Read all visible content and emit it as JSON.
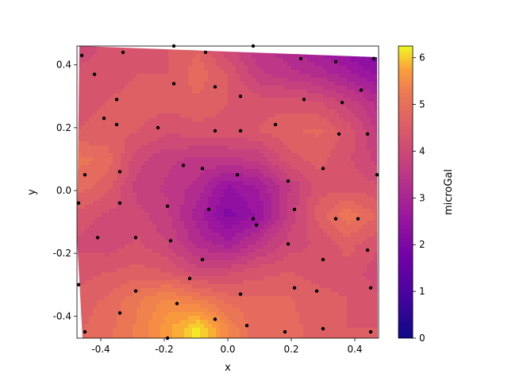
{
  "chart_data": {
    "type": "contour",
    "title": "",
    "xlabel": "x",
    "ylabel": "y",
    "xlim": [
      -0.475,
      0.475
    ],
    "ylim": [
      -0.47,
      0.46
    ],
    "xticks": [
      "-0.4",
      "-0.2",
      "0.0",
      "0.2",
      "0.4"
    ],
    "xtick_values": [
      -0.4,
      -0.2,
      0.0,
      0.2,
      0.4
    ],
    "yticks": [
      "-0.4",
      "-0.2",
      "0.0",
      "0.2",
      "0.4"
    ],
    "ytick_values": [
      -0.4,
      -0.2,
      0.0,
      0.2,
      0.4
    ],
    "colormap": "plasma",
    "colorbar": {
      "label": "microGal",
      "range": [
        0,
        6.25
      ],
      "ticks": [
        "0",
        "1",
        "2",
        "3",
        "4",
        "5",
        "6"
      ],
      "tick_values": [
        0,
        1,
        2,
        3,
        4,
        5,
        6
      ]
    },
    "grid": false,
    "legend": "none",
    "marker_color": "#000000",
    "stations": [
      [
        -0.46,
        0.43
      ],
      [
        -0.42,
        0.37
      ],
      [
        -0.33,
        0.44
      ],
      [
        -0.17,
        0.46
      ],
      [
        -0.07,
        0.44
      ],
      [
        0.08,
        0.46
      ],
      [
        0.23,
        0.42
      ],
      [
        0.34,
        0.41
      ],
      [
        0.46,
        0.42
      ],
      [
        -0.17,
        0.34
      ],
      [
        -0.04,
        0.33
      ],
      [
        0.04,
        0.3
      ],
      [
        0.24,
        0.29
      ],
      [
        0.36,
        0.28
      ],
      [
        0.42,
        0.32
      ],
      [
        -0.39,
        0.23
      ],
      [
        -0.35,
        0.29
      ],
      [
        -0.35,
        0.21
      ],
      [
        -0.22,
        0.2
      ],
      [
        -0.04,
        0.19
      ],
      [
        0.04,
        0.19
      ],
      [
        0.15,
        0.21
      ],
      [
        0.35,
        0.18
      ],
      [
        0.44,
        0.18
      ],
      [
        -0.45,
        0.05
      ],
      [
        -0.34,
        0.06
      ],
      [
        -0.14,
        0.08
      ],
      [
        -0.08,
        0.07
      ],
      [
        0.03,
        0.05
      ],
      [
        0.19,
        0.03
      ],
      [
        0.3,
        0.07
      ],
      [
        0.47,
        0.05
      ],
      [
        -0.47,
        -0.04
      ],
      [
        -0.34,
        -0.04
      ],
      [
        -0.19,
        -0.05
      ],
      [
        -0.06,
        -0.06
      ],
      [
        0.08,
        -0.09
      ],
      [
        0.09,
        -0.11
      ],
      [
        0.21,
        -0.06
      ],
      [
        0.34,
        -0.09
      ],
      [
        0.41,
        -0.09
      ],
      [
        -0.41,
        -0.15
      ],
      [
        -0.29,
        -0.15
      ],
      [
        -0.18,
        -0.16
      ],
      [
        -0.08,
        -0.22
      ],
      [
        0.19,
        -0.17
      ],
      [
        0.3,
        -0.22
      ],
      [
        0.44,
        -0.19
      ],
      [
        -0.47,
        -0.3
      ],
      [
        -0.29,
        -0.32
      ],
      [
        -0.12,
        -0.28
      ],
      [
        0.04,
        -0.33
      ],
      [
        0.21,
        -0.31
      ],
      [
        0.28,
        -0.32
      ],
      [
        0.45,
        -0.31
      ],
      [
        -0.45,
        -0.45
      ],
      [
        -0.34,
        -0.39
      ],
      [
        -0.16,
        -0.36
      ],
      [
        -0.19,
        -0.47
      ],
      [
        -0.04,
        -0.41
      ],
      [
        0.06,
        -0.43
      ],
      [
        0.18,
        -0.45
      ],
      [
        0.3,
        -0.44
      ],
      [
        0.45,
        -0.45
      ]
    ],
    "grid_y": [
      0.46,
      0.37,
      0.28,
      0.19,
      0.1,
      0.01,
      -0.08,
      -0.17,
      -0.26,
      -0.35,
      -0.44
    ],
    "grid_x": [
      -0.475,
      -0.38,
      -0.285,
      -0.19,
      -0.095,
      0.0,
      0.095,
      0.19,
      0.285,
      0.38,
      0.475
    ],
    "values": [
      [
        3.6,
        3.8,
        3.9,
        4.0,
        4.2,
        3.5,
        3.1,
        2.8,
        2.4,
        2.0,
        1.6
      ],
      [
        3.8,
        3.9,
        4.0,
        4.0,
        4.4,
        4.0,
        3.3,
        3.1,
        2.9,
        2.6,
        2.2
      ],
      [
        3.9,
        4.0,
        4.1,
        4.1,
        4.2,
        4.0,
        3.9,
        3.9,
        3.8,
        3.4,
        2.9
      ],
      [
        4.0,
        4.1,
        4.0,
        3.8,
        3.9,
        3.9,
        4.0,
        4.2,
        4.3,
        3.9,
        3.2
      ],
      [
        4.6,
        4.4,
        3.6,
        3.3,
        3.2,
        3.2,
        3.3,
        3.9,
        4.1,
        3.8,
        3.4
      ],
      [
        4.4,
        4.1,
        3.4,
        3.2,
        2.9,
        2.2,
        2.5,
        3.2,
        3.9,
        3.9,
        3.8
      ],
      [
        3.9,
        3.7,
        3.6,
        3.3,
        2.6,
        1.9,
        2.3,
        3.3,
        4.1,
        4.7,
        4.2
      ],
      [
        3.7,
        3.6,
        3.8,
        3.5,
        2.9,
        2.6,
        3.1,
        3.6,
        3.8,
        4.1,
        3.8
      ],
      [
        3.9,
        4.0,
        4.1,
        4.0,
        3.6,
        3.7,
        3.9,
        4.0,
        3.9,
        3.9,
        3.6
      ],
      [
        4.1,
        4.3,
        4.7,
        5.1,
        4.8,
        4.4,
        4.3,
        4.3,
        4.1,
        4.0,
        3.8
      ],
      [
        4.2,
        4.4,
        4.8,
        5.4,
        6.1,
        5.0,
        4.3,
        4.3,
        4.2,
        4.0,
        4.0
      ]
    ]
  }
}
